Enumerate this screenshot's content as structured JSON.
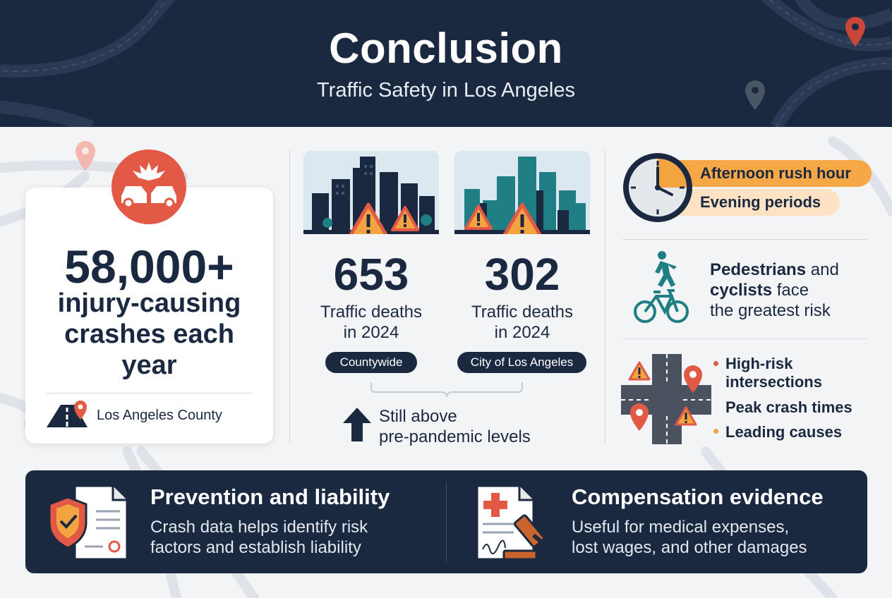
{
  "header": {
    "title": "Conclusion",
    "subtitle": "Traffic Safety in Los Angeles"
  },
  "crashes": {
    "number": "58,000+",
    "description_lines": [
      "injury-causing",
      "crashes each",
      "year"
    ],
    "location": "Los Angeles County",
    "icon": "car-crash-icon"
  },
  "deaths": {
    "countywide": {
      "number": "653",
      "label_lines": [
        "Traffic deaths",
        "in 2024"
      ],
      "badge": "Countywide"
    },
    "city": {
      "number": "302",
      "label_lines": [
        "Traffic deaths",
        "in 2024"
      ],
      "badge": "City of Los Angeles"
    },
    "trend_lines": [
      "Still above",
      "pre-pandemic levels"
    ],
    "trend_icon": "arrow-up-icon"
  },
  "times": {
    "items": [
      "Afternoon rush hour",
      "Evening periods"
    ],
    "icon": "clock-icon"
  },
  "vulnerable": {
    "lines": [
      {
        "bold": "Pedestrians",
        "rest": " and"
      },
      {
        "bold": "cyclists",
        "rest": " face"
      },
      {
        "bold": "",
        "rest": "the greatest risk"
      }
    ]
  },
  "factors": {
    "items": [
      "High-risk intersections",
      "Peak crash times",
      "Leading causes"
    ],
    "first_lines": [
      "High-risk",
      "intersections"
    ],
    "bullet_colors": [
      "#e25a45",
      "#ffffff",
      "#f3a340"
    ]
  },
  "bottom": {
    "prevention": {
      "title": "Prevention and liability",
      "text_lines": [
        "Crash data helps identify risk",
        "factors and establish liability"
      ]
    },
    "compensation": {
      "title": "Compensation evidence",
      "text_lines": [
        "Useful for medical expenses,",
        "lost wages, and other damages"
      ]
    }
  },
  "colors": {
    "navy": "#1b2940",
    "red": "#e25a45",
    "orange": "#f3a340",
    "teal": "#1f7f85"
  }
}
